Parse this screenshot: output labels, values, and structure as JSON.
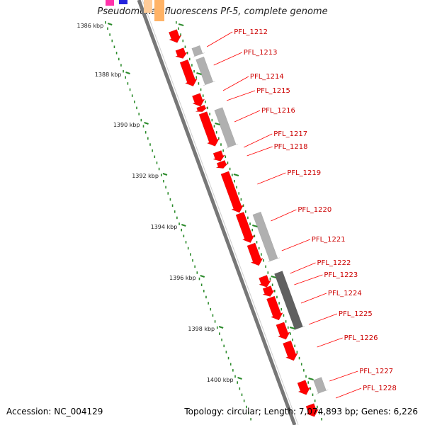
{
  "title": "Pseudomonas fluorescens Pf-5, complete genome",
  "accession": "Accession: NC_004129",
  "summary": "Topology: circular; Length: 7,074,893 bp; Genes: 6,226",
  "colors": {
    "forward_gene": "#ff0000",
    "reverse_gene": "#b0b0b0",
    "reverse_gene_dark": "#606060",
    "backbone": "#777777",
    "tick": "#2a8a2a",
    "label": "#cc0000"
  },
  "ticks": [
    "1386 kbp",
    "1388 kbp",
    "1390 kbp",
    "1392 kbp",
    "1394 kbp",
    "1396 kbp",
    "1398 kbp",
    "1400 kbp"
  ],
  "genes": [
    "PFL_1212",
    "PFL_1213",
    "PFL_1214",
    "PFL_1215",
    "PFL_1216",
    "PFL_1217",
    "PFL_1218",
    "PFL_1219",
    "PFL_1220",
    "PFL_1221",
    "PFL_1222",
    "PFL_1223",
    "PFL_1224",
    "PFL_1225",
    "PFL_1226",
    "PFL_1227",
    "PFL_1228"
  ]
}
